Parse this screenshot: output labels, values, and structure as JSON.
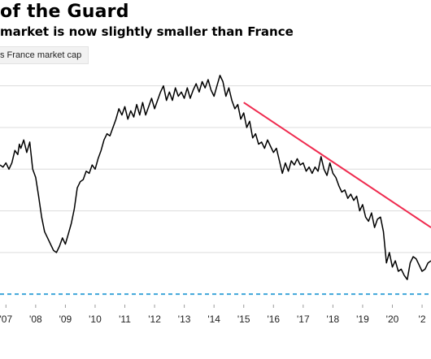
{
  "chart_data": {
    "type": "line",
    "title": "of the Guard",
    "subtitle": "market is now slightly smaller than France",
    "legend_label": "s France market cap",
    "x_tick_labels": [
      "'07",
      "'08",
      "'09",
      "'10",
      "'11",
      "'12",
      "'13",
      "'14",
      "'15",
      "'16",
      "'17",
      "'18",
      "'19",
      "'20",
      "'2"
    ],
    "xlim": [
      2006.8,
      2021.3
    ],
    "ylim": [
      0.95,
      2.1
    ],
    "y_gridlines": [
      1.0,
      1.2,
      1.4,
      1.6,
      1.8,
      2.0
    ],
    "reference_line_y": 1.0,
    "grid": "horizontal",
    "series": [
      {
        "values": [
          [
            2006.8,
            1.62
          ],
          [
            2006.9,
            1.61
          ],
          [
            2007.0,
            1.63
          ],
          [
            2007.1,
            1.6
          ],
          [
            2007.2,
            1.63
          ],
          [
            2007.3,
            1.69
          ],
          [
            2007.4,
            1.67
          ],
          [
            2007.45,
            1.72
          ],
          [
            2007.5,
            1.7
          ],
          [
            2007.6,
            1.74
          ],
          [
            2007.7,
            1.68
          ],
          [
            2007.8,
            1.73
          ],
          [
            2007.9,
            1.6
          ],
          [
            2008.0,
            1.56
          ],
          [
            2008.1,
            1.47
          ],
          [
            2008.2,
            1.37
          ],
          [
            2008.3,
            1.3
          ],
          [
            2008.4,
            1.27
          ],
          [
            2008.5,
            1.24
          ],
          [
            2008.6,
            1.21
          ],
          [
            2008.7,
            1.2
          ],
          [
            2008.8,
            1.23
          ],
          [
            2008.9,
            1.27
          ],
          [
            2009.0,
            1.24
          ],
          [
            2009.1,
            1.29
          ],
          [
            2009.2,
            1.34
          ],
          [
            2009.3,
            1.41
          ],
          [
            2009.4,
            1.51
          ],
          [
            2009.5,
            1.54
          ],
          [
            2009.6,
            1.55
          ],
          [
            2009.7,
            1.59
          ],
          [
            2009.8,
            1.58
          ],
          [
            2009.9,
            1.62
          ],
          [
            2010.0,
            1.6
          ],
          [
            2010.1,
            1.65
          ],
          [
            2010.2,
            1.69
          ],
          [
            2010.3,
            1.74
          ],
          [
            2010.4,
            1.77
          ],
          [
            2010.5,
            1.76
          ],
          [
            2010.6,
            1.8
          ],
          [
            2010.7,
            1.84
          ],
          [
            2010.8,
            1.89
          ],
          [
            2010.9,
            1.86
          ],
          [
            2011.0,
            1.9
          ],
          [
            2011.1,
            1.84
          ],
          [
            2011.2,
            1.88
          ],
          [
            2011.3,
            1.85
          ],
          [
            2011.4,
            1.91
          ],
          [
            2011.5,
            1.86
          ],
          [
            2011.6,
            1.92
          ],
          [
            2011.7,
            1.86
          ],
          [
            2011.8,
            1.9
          ],
          [
            2011.9,
            1.94
          ],
          [
            2012.0,
            1.89
          ],
          [
            2012.1,
            1.93
          ],
          [
            2012.2,
            1.97
          ],
          [
            2012.3,
            2.0
          ],
          [
            2012.4,
            1.93
          ],
          [
            2012.5,
            1.97
          ],
          [
            2012.6,
            1.93
          ],
          [
            2012.7,
            1.99
          ],
          [
            2012.8,
            1.95
          ],
          [
            2012.9,
            1.97
          ],
          [
            2013.0,
            1.94
          ],
          [
            2013.1,
            1.99
          ],
          [
            2013.2,
            1.94
          ],
          [
            2013.3,
            1.98
          ],
          [
            2013.4,
            2.01
          ],
          [
            2013.5,
            1.97
          ],
          [
            2013.6,
            2.02
          ],
          [
            2013.7,
            1.99
          ],
          [
            2013.8,
            2.03
          ],
          [
            2013.9,
            1.98
          ],
          [
            2014.0,
            1.95
          ],
          [
            2014.1,
            2.0
          ],
          [
            2014.2,
            2.05
          ],
          [
            2014.3,
            2.02
          ],
          [
            2014.4,
            1.95
          ],
          [
            2014.5,
            1.99
          ],
          [
            2014.6,
            1.93
          ],
          [
            2014.7,
            1.89
          ],
          [
            2014.8,
            1.91
          ],
          [
            2014.9,
            1.84
          ],
          [
            2015.0,
            1.87
          ],
          [
            2015.1,
            1.8
          ],
          [
            2015.2,
            1.83
          ],
          [
            2015.3,
            1.75
          ],
          [
            2015.4,
            1.77
          ],
          [
            2015.5,
            1.72
          ],
          [
            2015.6,
            1.73
          ],
          [
            2015.7,
            1.7
          ],
          [
            2015.8,
            1.74
          ],
          [
            2015.9,
            1.71
          ],
          [
            2016.0,
            1.68
          ],
          [
            2016.1,
            1.7
          ],
          [
            2016.2,
            1.64
          ],
          [
            2016.3,
            1.58
          ],
          [
            2016.4,
            1.63
          ],
          [
            2016.5,
            1.59
          ],
          [
            2016.6,
            1.64
          ],
          [
            2016.7,
            1.62
          ],
          [
            2016.8,
            1.65
          ],
          [
            2016.9,
            1.62
          ],
          [
            2017.0,
            1.63
          ],
          [
            2017.1,
            1.59
          ],
          [
            2017.2,
            1.61
          ],
          [
            2017.3,
            1.58
          ],
          [
            2017.4,
            1.61
          ],
          [
            2017.5,
            1.59
          ],
          [
            2017.6,
            1.66
          ],
          [
            2017.7,
            1.6
          ],
          [
            2017.8,
            1.57
          ],
          [
            2017.9,
            1.63
          ],
          [
            2018.0,
            1.58
          ],
          [
            2018.1,
            1.56
          ],
          [
            2018.2,
            1.52
          ],
          [
            2018.3,
            1.49
          ],
          [
            2018.4,
            1.5
          ],
          [
            2018.5,
            1.46
          ],
          [
            2018.6,
            1.48
          ],
          [
            2018.7,
            1.45
          ],
          [
            2018.8,
            1.47
          ],
          [
            2018.9,
            1.4
          ],
          [
            2019.0,
            1.43
          ],
          [
            2019.1,
            1.37
          ],
          [
            2019.2,
            1.35
          ],
          [
            2019.3,
            1.39
          ],
          [
            2019.4,
            1.32
          ],
          [
            2019.5,
            1.36
          ],
          [
            2019.6,
            1.37
          ],
          [
            2019.7,
            1.3
          ],
          [
            2019.8,
            1.15
          ],
          [
            2019.9,
            1.2
          ],
          [
            2020.0,
            1.13
          ],
          [
            2020.1,
            1.16
          ],
          [
            2020.2,
            1.11
          ],
          [
            2020.3,
            1.12
          ],
          [
            2020.4,
            1.09
          ],
          [
            2020.5,
            1.07
          ],
          [
            2020.6,
            1.15
          ],
          [
            2020.7,
            1.18
          ],
          [
            2020.8,
            1.17
          ],
          [
            2020.9,
            1.14
          ],
          [
            2021.0,
            1.11
          ],
          [
            2021.1,
            1.12
          ],
          [
            2021.2,
            1.15
          ],
          [
            2021.3,
            1.16
          ]
        ],
        "color": "#000000"
      }
    ],
    "trend_line": {
      "from": [
        2015.0,
        1.92
      ],
      "to": [
        2021.3,
        1.32
      ],
      "color": "#ef2b4f"
    },
    "colors": {
      "gridline": "#dcdcdc",
      "reference_line": "#3ea6d9",
      "tick_label": "#222222"
    }
  }
}
